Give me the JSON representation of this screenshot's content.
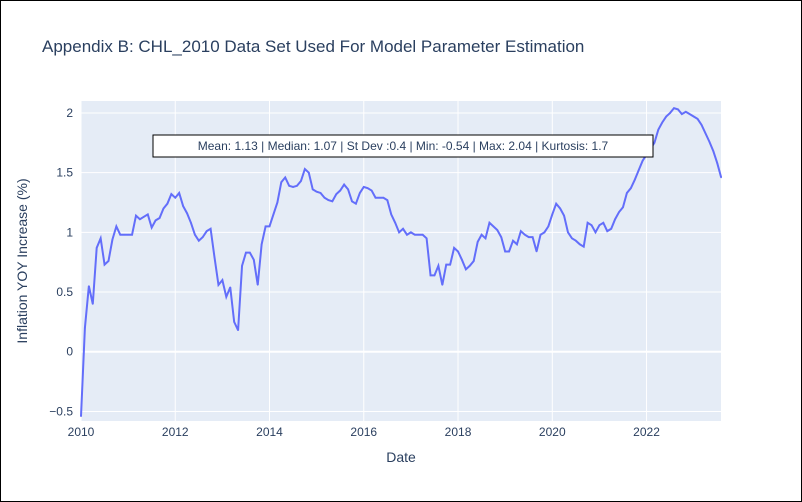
{
  "chart_data": {
    "type": "line",
    "title": "Appendix B: CHL_2010 Data Set Used For Model Parameter Estimation",
    "xlabel": "Date",
    "ylabel": "Inflation YOY Increase (%)",
    "xlim": [
      2010.0,
      2023.58
    ],
    "ylim": [
      -0.58,
      2.1
    ],
    "x_ticks": [
      2010,
      2012,
      2014,
      2016,
      2018,
      2020,
      2022
    ],
    "x_tick_labels": [
      "2010",
      "2012",
      "2014",
      "2016",
      "2018",
      "2020",
      "2022"
    ],
    "y_ticks": [
      -0.5,
      0,
      0.5,
      1,
      1.5,
      2
    ],
    "y_tick_labels": [
      "−0.5",
      "0",
      "0.5",
      "1",
      "1.5",
      "2"
    ],
    "annotation": "Mean: 1.13 | Median: 1.07 | St Dev :0.4 | Min: -0.54 | Max: 2.04 | Kurtosis: 1.7",
    "grid": true,
    "colors": {
      "line": "#636efa",
      "plot_bg": "#e5ecf6",
      "grid": "#ffffff",
      "text": "#2a3f5f"
    },
    "series": [
      {
        "x": [
          2010.0,
          2010.083,
          2010.167,
          2010.25,
          2010.333,
          2010.417,
          2010.5,
          2010.583,
          2010.667,
          2010.75,
          2010.833,
          2010.917,
          2011.0,
          2011.083,
          2011.167,
          2011.25,
          2011.333,
          2011.417,
          2011.5,
          2011.583,
          2011.667,
          2011.75,
          2011.833,
          2011.917,
          2012.0,
          2012.083,
          2012.167,
          2012.25,
          2012.333,
          2012.417,
          2012.5,
          2012.583,
          2012.667,
          2012.75,
          2012.833,
          2012.917,
          2013.0,
          2013.083,
          2013.167,
          2013.25,
          2013.333,
          2013.417,
          2013.5,
          2013.583,
          2013.667,
          2013.75,
          2013.833,
          2013.917,
          2014.0,
          2014.083,
          2014.167,
          2014.25,
          2014.333,
          2014.417,
          2014.5,
          2014.583,
          2014.667,
          2014.75,
          2014.833,
          2014.917,
          2015.0,
          2015.083,
          2015.167,
          2015.25,
          2015.333,
          2015.417,
          2015.5,
          2015.583,
          2015.667,
          2015.75,
          2015.833,
          2015.917,
          2016.0,
          2016.083,
          2016.167,
          2016.25,
          2016.333,
          2016.417,
          2016.5,
          2016.583,
          2016.667,
          2016.75,
          2016.833,
          2016.917,
          2017.0,
          2017.083,
          2017.167,
          2017.25,
          2017.333,
          2017.417,
          2017.5,
          2017.583,
          2017.667,
          2017.75,
          2017.833,
          2017.917,
          2018.0,
          2018.083,
          2018.167,
          2018.25,
          2018.333,
          2018.417,
          2018.5,
          2018.583,
          2018.667,
          2018.75,
          2018.833,
          2018.917,
          2019.0,
          2019.083,
          2019.167,
          2019.25,
          2019.333,
          2019.417,
          2019.5,
          2019.583,
          2019.667,
          2019.75,
          2019.833,
          2019.917,
          2020.0,
          2020.083,
          2020.167,
          2020.25,
          2020.333,
          2020.417,
          2020.5,
          2020.583,
          2020.667,
          2020.75,
          2020.833,
          2020.917,
          2021.0,
          2021.083,
          2021.167,
          2021.25,
          2021.333,
          2021.417,
          2021.5,
          2021.583,
          2021.667,
          2021.75,
          2021.833,
          2021.917,
          2022.0,
          2022.083,
          2022.167,
          2022.25,
          2022.333,
          2022.417,
          2022.5,
          2022.583,
          2022.667,
          2022.75,
          2022.833,
          2022.917,
          2023.0,
          2023.083,
          2023.167,
          2023.25,
          2023.333,
          2023.417,
          2023.5,
          2023.583
        ],
        "y": [
          -0.54,
          0.2,
          0.55,
          0.4,
          0.87,
          0.95,
          0.73,
          0.76,
          0.94,
          1.05,
          0.98,
          0.98,
          0.98,
          0.98,
          1.14,
          1.11,
          1.13,
          1.15,
          1.04,
          1.1,
          1.12,
          1.2,
          1.24,
          1.32,
          1.29,
          1.33,
          1.22,
          1.16,
          1.08,
          0.98,
          0.93,
          0.96,
          1.01,
          1.03,
          0.79,
          0.56,
          0.6,
          0.46,
          0.54,
          0.25,
          0.18,
          0.72,
          0.83,
          0.83,
          0.77,
          0.56,
          0.9,
          1.05,
          1.05,
          1.15,
          1.25,
          1.42,
          1.46,
          1.39,
          1.38,
          1.39,
          1.43,
          1.53,
          1.5,
          1.36,
          1.34,
          1.33,
          1.29,
          1.27,
          1.26,
          1.32,
          1.35,
          1.4,
          1.36,
          1.26,
          1.24,
          1.33,
          1.38,
          1.37,
          1.35,
          1.29,
          1.29,
          1.29,
          1.27,
          1.15,
          1.08,
          1.0,
          1.03,
          0.98,
          1.0,
          0.98,
          0.98,
          0.98,
          0.95,
          0.64,
          0.64,
          0.72,
          0.56,
          0.73,
          0.73,
          0.87,
          0.84,
          0.77,
          0.69,
          0.72,
          0.76,
          0.92,
          0.98,
          0.95,
          1.08,
          1.05,
          1.02,
          0.96,
          0.84,
          0.84,
          0.93,
          0.9,
          1.01,
          0.98,
          0.96,
          0.96,
          0.84,
          0.98,
          1.0,
          1.05,
          1.15,
          1.24,
          1.2,
          1.14,
          1.0,
          0.95,
          0.93,
          0.9,
          0.88,
          1.08,
          1.06,
          1.0,
          1.06,
          1.08,
          1.01,
          1.03,
          1.11,
          1.17,
          1.21,
          1.33,
          1.37,
          1.44,
          1.52,
          1.6,
          1.65,
          1.7,
          1.75,
          1.86,
          1.92,
          1.97,
          2.0,
          2.04,
          2.03,
          1.99,
          2.01,
          1.99,
          1.97,
          1.95,
          1.9,
          1.83,
          1.76,
          1.68,
          1.58,
          1.46
        ]
      }
    ]
  }
}
